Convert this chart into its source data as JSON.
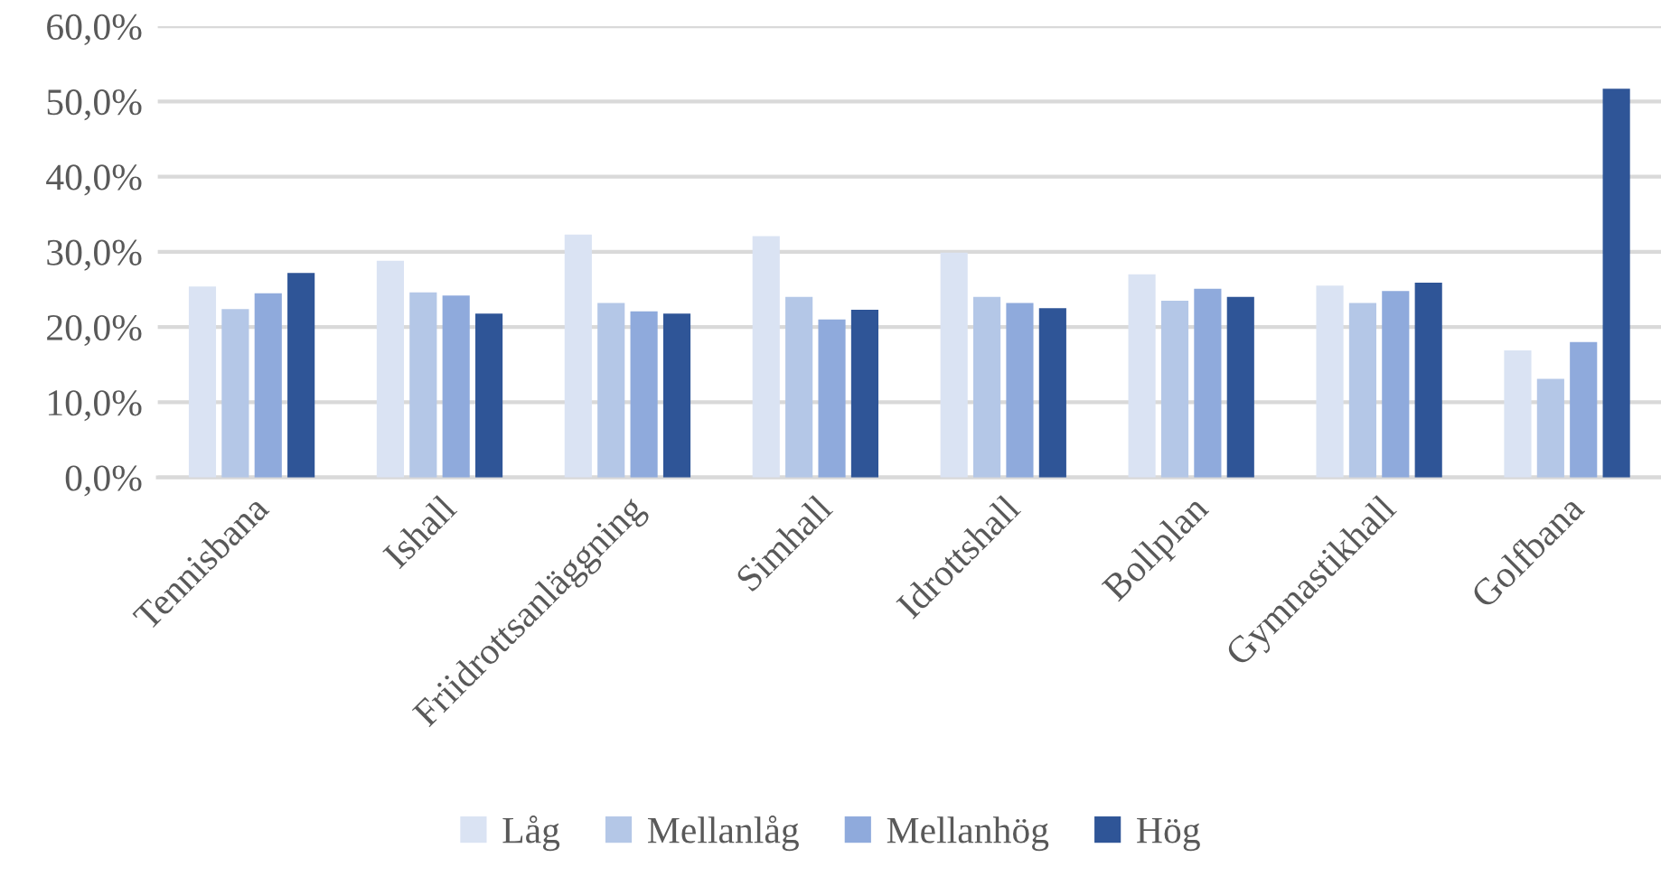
{
  "chart_data": {
    "type": "bar",
    "categories": [
      "Tennisbana",
      "Ishall",
      "Friidrottsanläggning",
      "Simhall",
      "Idrottshall",
      "Bollplan",
      "Gymnastikhall",
      "Golfbana"
    ],
    "series": [
      {
        "name": "Låg",
        "color": "#dae3f3",
        "values": [
          25.4,
          28.8,
          32.3,
          32.1,
          29.9,
          27.0,
          25.5,
          16.9
        ]
      },
      {
        "name": "Mellanlåg",
        "color": "#b4c7e7",
        "values": [
          22.4,
          24.6,
          23.2,
          24.0,
          24.0,
          23.5,
          23.2,
          13.1
        ]
      },
      {
        "name": "Mellanhög",
        "color": "#8faadc",
        "values": [
          24.5,
          24.2,
          22.1,
          21.0,
          23.2,
          25.1,
          24.8,
          18.0
        ]
      },
      {
        "name": "Hög",
        "color": "#2f5597",
        "values": [
          27.2,
          21.8,
          21.8,
          22.3,
          22.5,
          24.0,
          25.9,
          51.7
        ]
      }
    ],
    "ylim": [
      0,
      60
    ],
    "yticks": [
      {
        "value": 0,
        "label": "0,0%"
      },
      {
        "value": 10,
        "label": "10,0%"
      },
      {
        "value": 20,
        "label": "20,0%"
      },
      {
        "value": 30,
        "label": "30,0%"
      },
      {
        "value": 40,
        "label": "40,0%"
      },
      {
        "value": 50,
        "label": "50,0%"
      },
      {
        "value": 60,
        "label": "60,0%"
      }
    ],
    "grid": "y",
    "legend": "bottom"
  }
}
